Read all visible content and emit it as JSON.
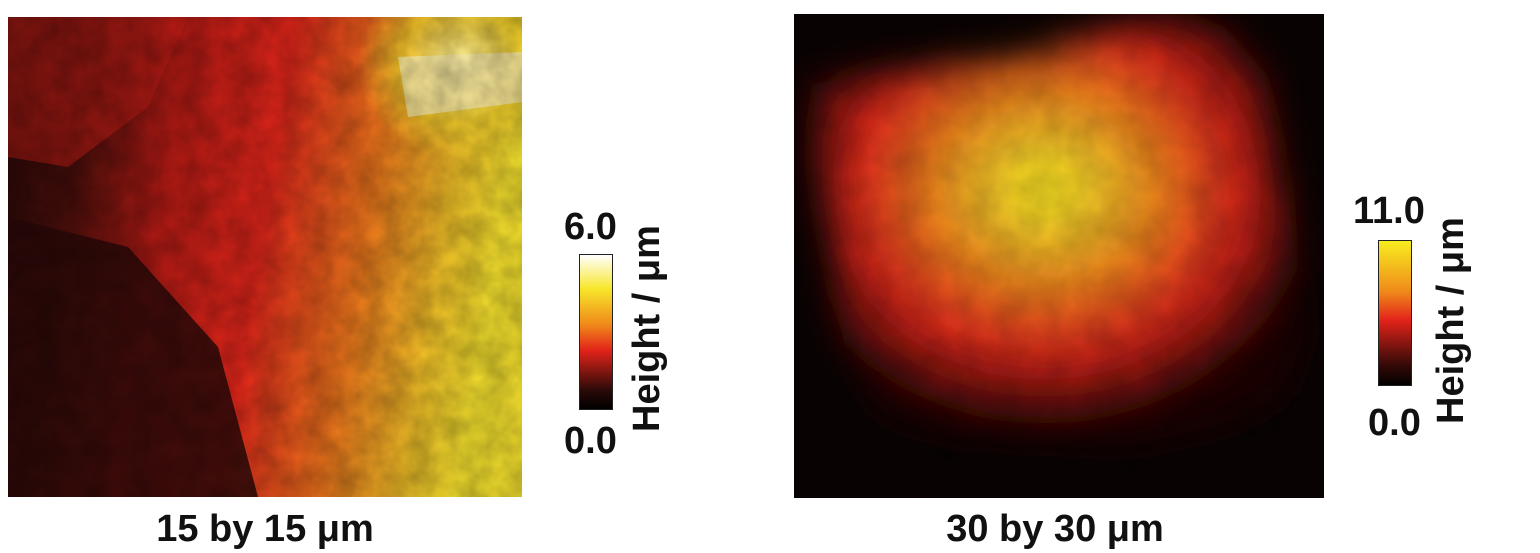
{
  "panels": [
    {
      "caption": "15 by 15 μm",
      "colorbar": {
        "max": "6.0",
        "min": "0.0",
        "title": "Height / μm",
        "colors": [
          "#ffffff",
          "#f7e62a",
          "#f08a1a",
          "#e2231a",
          "#2a0a08",
          "#000000"
        ]
      }
    },
    {
      "caption": "30 by 30 μm",
      "colorbar": {
        "max": "11.0",
        "min": "0.0",
        "title": "Height / μm",
        "colors": [
          "#f7ee1f",
          "#f08a1a",
          "#e2231a",
          "#3a0b08",
          "#000000"
        ]
      }
    }
  ]
}
